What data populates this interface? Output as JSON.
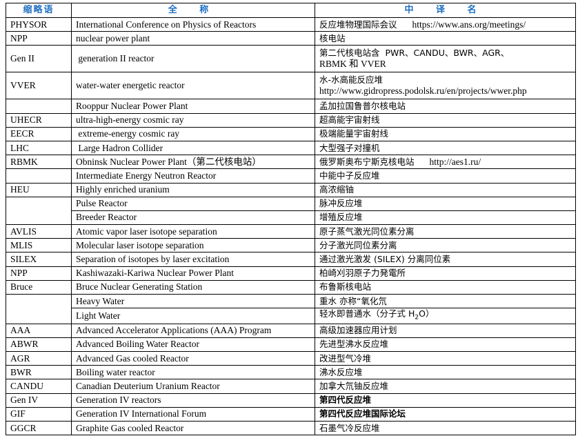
{
  "header": {
    "abbr": "缩略语",
    "full": "全 称",
    "cn": "中 译 名"
  },
  "header_color": "#1f6fc0",
  "rows": [
    {
      "abbr": "PHYSOR",
      "full": "International Conference on Physics of Reactors",
      "cn": "反应堆物理国际会议",
      "url": "https://www.ans.org/meetings/"
    },
    {
      "abbr": "NPP",
      "full": "nuclear power plant",
      "cn": "核电站"
    },
    {
      "abbr": "Gen II",
      "full": " generation II reactor",
      "cn": "第二代核电站含  PWR、CANDU、BWR、AGR、",
      "cn2": "RBMK 和 VVER"
    },
    {
      "abbr": "VVER",
      "full": "water-water energetic reactor",
      "cn": "水-水高能反应堆",
      "cn2": "http://www.gidropress.podolsk.ru/en/projects/wwer.php"
    },
    {
      "abbr": "",
      "full": "Rooppur Nuclear Power Plant",
      "cn": "孟加拉国鲁普尔核电站"
    },
    {
      "abbr": "UHECR",
      "full": "ultra-high-energy cosmic ray",
      "cn": "超高能宇宙射线"
    },
    {
      "abbr": "EECR",
      "full": " extreme-energy cosmic ray",
      "cn": "极端能量宇宙射线"
    },
    {
      "abbr": "LHC",
      "full": " Large Hadron Collider",
      "cn": "大型强子对撞机"
    },
    {
      "abbr": "RBMK",
      "full": "Obninsk Nuclear Power Plant（第二代核电站）",
      "cn": "俄罗斯奥布宁斯克核电站",
      "url": "http://aes1.ru/"
    },
    {
      "abbr": "",
      "full": "Intermediate Energy Neutron Reactor",
      "cn": "中能中子反应堆"
    },
    {
      "abbr": "HEU",
      "full": "Highly enriched uranium",
      "cn": "高浓缩铀"
    },
    {
      "abbr": "",
      "full": "Pulse Reactor",
      "cn": "脉冲反应堆"
    },
    {
      "abbr": "",
      "full": "Breeder Reactor",
      "cn": "增殖反应堆"
    },
    {
      "abbr": "AVLIS",
      "full": "Atomic vapor laser isotope separation",
      "cn": "原子蒸气激光同位素分离"
    },
    {
      "abbr": "MLIS",
      "full": "Molecular laser isotope separation",
      "cn": "分子激光同位素分离"
    },
    {
      "abbr": "SILEX",
      "full": "Separation of isotopes by laser excitation",
      "cn": "通过激光激发 (SILEX) 分离同位素"
    },
    {
      "abbr": "NPP",
      "full": "Kashiwazaki-Kariwa Nuclear Power Plant",
      "cn": "柏崎刈羽原子力発電所"
    },
    {
      "abbr": "Bruce",
      "full": "Bruce Nuclear Generating Station",
      "cn": "布鲁斯核电站"
    },
    {
      "abbr": "",
      "full": "Heavy Water",
      "cn": "重水 亦称“氧化氘"
    },
    {
      "abbr": "",
      "full": "Light Water",
      "cn": "轻水即普通水（分子式 H",
      "cn_sub": "2",
      "cn_post": "O）"
    },
    {
      "abbr": "AAA",
      "full": "Advanced Accelerator Applications (AAA) Program",
      "cn": "高级加速器应用计划"
    },
    {
      "abbr": "ABWR",
      "full": "Advanced Boiling Water Reactor",
      "cn": "先进型沸水反应堆"
    },
    {
      "abbr": "AGR",
      "full": "Advanced Gas cooled Reactor",
      "cn": "改进型气冷堆"
    },
    {
      "abbr": "BWR",
      "full": "Boiling water reactor",
      "cn": "沸水反应堆"
    },
    {
      "abbr": "CANDU",
      "full": "Canadian Deuterium Uranium Reactor",
      "cn": "加拿大氘铀反应堆"
    },
    {
      "abbr": "Gen IV",
      "full": "Generation IV reactors",
      "cn": "第四代反应堆"
    },
    {
      "abbr": "GIF",
      "full": "Generation IV International Forum",
      "cn": "第四代反应堆国际论坛"
    },
    {
      "abbr": "GGCR",
      "full": "Graphite Gas cooled Reactor",
      "cn": "石墨气冷反应堆"
    }
  ]
}
